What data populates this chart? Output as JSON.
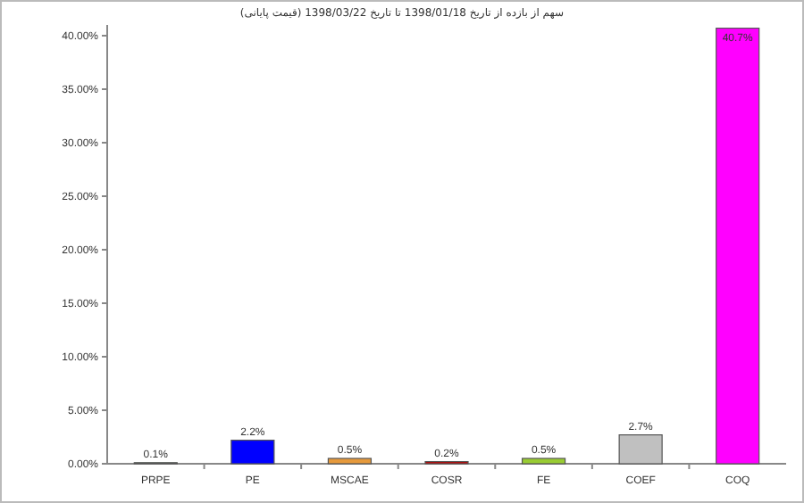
{
  "chart_data": {
    "type": "bar",
    "title": "سهم از بازده از تاریخ 1398/01/18 تا تاریخ 1398/03/22 (قیمت پایانی)",
    "categories": [
      "PRPE",
      "PE",
      "MSCAE",
      "COSR",
      "FE",
      "COEF",
      "COQ"
    ],
    "values": [
      0.1,
      2.2,
      0.5,
      0.2,
      0.5,
      2.7,
      40.7
    ],
    "colors": [
      "#1f6b1f",
      "#0000ff",
      "#e69a3c",
      "#c00000",
      "#99cc33",
      "#c0c0c0",
      "#ff00ff"
    ],
    "value_labels": [
      "0.1%",
      "2.2%",
      "0.5%",
      "0.2%",
      "0.5%",
      "2.7%",
      "40.7%"
    ],
    "ylim": [
      0,
      41
    ],
    "yticks": [
      {
        "value": 0,
        "label": "0.00%"
      },
      {
        "value": 5,
        "label": "5.00%"
      },
      {
        "value": 10,
        "label": "10.00%"
      },
      {
        "value": 15,
        "label": "15.00%"
      },
      {
        "value": 20,
        "label": "20.00%"
      },
      {
        "value": 25,
        "label": "25.00%"
      },
      {
        "value": 30,
        "label": "30.00%"
      },
      {
        "value": 35,
        "label": "35.00%"
      },
      {
        "value": 40,
        "label": "40.00%"
      }
    ]
  }
}
